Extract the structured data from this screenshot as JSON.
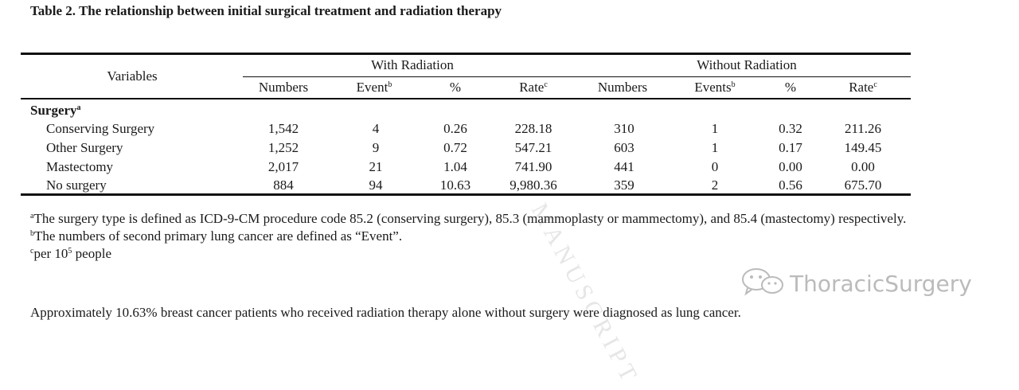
{
  "caption": "Table 2. The relationship between initial surgical treatment and radiation therapy",
  "table": {
    "variables_header": "Variables",
    "groups": [
      "With Radiation",
      "Without Radiation"
    ],
    "columns": [
      "Numbers",
      "Event",
      "%",
      "Rate",
      "Numbers",
      "Events",
      "%",
      "Rate"
    ],
    "column_sups": [
      "",
      "b",
      "",
      "c",
      "",
      "b",
      "",
      "c"
    ],
    "section_label": "Surgery",
    "section_sup": "a",
    "rows": [
      {
        "label": "Conserving Surgery",
        "values": [
          "1,542",
          "4",
          "0.26",
          "228.18",
          "310",
          "1",
          "0.32",
          "211.26"
        ]
      },
      {
        "label": "Other Surgery",
        "values": [
          "1,252",
          "9",
          "0.72",
          "547.21",
          "603",
          "1",
          "0.17",
          "149.45"
        ]
      },
      {
        "label": "Mastectomy",
        "values": [
          "2,017",
          "21",
          "1.04",
          "741.90",
          "441",
          "0",
          "0.00",
          "0.00"
        ]
      },
      {
        "label": "No surgery",
        "values": [
          "884",
          "94",
          "10.63",
          "9,980.36",
          "359",
          "2",
          "0.56",
          "675.70"
        ]
      }
    ]
  },
  "footnotes": {
    "a": {
      "mark": "a",
      "text": "The surgery type is defined as ICD-9-CM procedure code 85.2 (conserving surgery), 85.3 (mammoplasty or mammectomy), and 85.4 (mastectomy) respectively."
    },
    "b": {
      "mark": "b",
      "text": "The numbers of second primary lung cancer are defined as “Event”."
    },
    "c": {
      "mark": "c",
      "text_before": "per 10",
      "exponent": "5",
      "text_after": " people"
    }
  },
  "conclusion": "Approximately 10.63% breast cancer patients who received radiation therapy alone without surgery were diagnosed as lung cancer.",
  "watermark": "MANUSCRIPT",
  "logo_text": "ThoracicSurgery",
  "logo_icon": "wechat-icon"
}
